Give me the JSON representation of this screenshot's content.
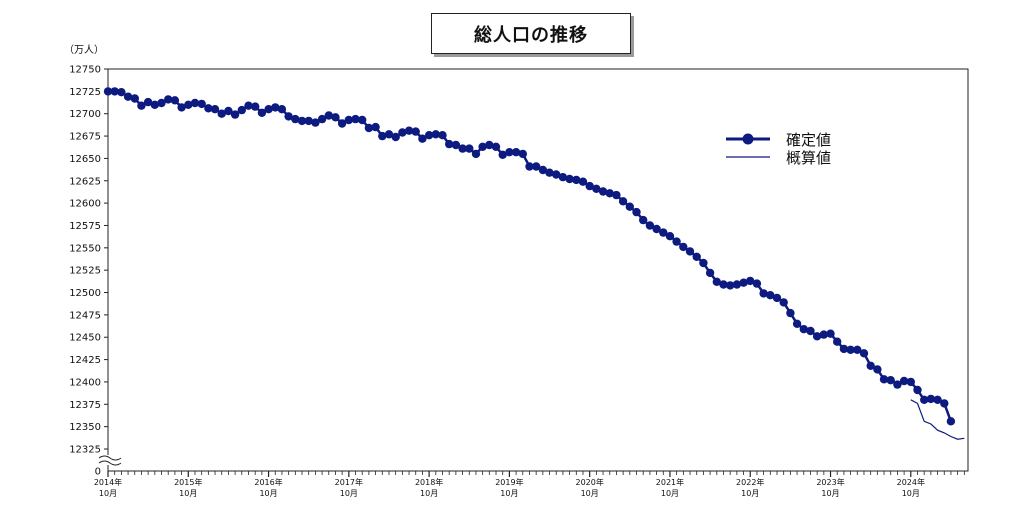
{
  "chart_data": {
    "type": "line",
    "title": "総人口の推移",
    "yunit": "（万人）",
    "ylim": [
      12325,
      12750
    ],
    "yaxis_zero_label": "0",
    "yticks": [
      12325,
      12350,
      12375,
      12400,
      12425,
      12450,
      12475,
      12500,
      12525,
      12550,
      12575,
      12600,
      12625,
      12650,
      12675,
      12700,
      12725,
      12750
    ],
    "xticks": [
      {
        "year": "2014年",
        "month": "10月"
      },
      {
        "year": "2015年",
        "month": "10月"
      },
      {
        "year": "2016年",
        "month": "10月"
      },
      {
        "year": "2017年",
        "month": "10月"
      },
      {
        "year": "2018年",
        "month": "10月"
      },
      {
        "year": "2019年",
        "month": "10月"
      },
      {
        "year": "2020年",
        "month": "10月"
      },
      {
        "year": "2021年",
        "month": "10月"
      },
      {
        "year": "2022年",
        "month": "10月"
      },
      {
        "year": "2023年",
        "month": "10月"
      },
      {
        "year": "2024年",
        "month": "10月"
      }
    ],
    "legend_position": "right",
    "series": [
      {
        "name": "確定値",
        "color": "#0d1a80",
        "marker": "circle",
        "start": "2014-10",
        "values": [
          12725,
          12725,
          12724,
          12719,
          12717,
          12709,
          12713,
          12710,
          12712,
          12716,
          12715,
          12707,
          12710,
          12712,
          12711,
          12706,
          12705,
          12700,
          12703,
          12699,
          12704,
          12709,
          12708,
          12701,
          12705,
          12707,
          12705,
          12697,
          12694,
          12692,
          12692,
          12690,
          12694,
          12698,
          12696,
          12689,
          12693,
          12694,
          12693,
          12684,
          12685,
          12675,
          12677,
          12674,
          12679,
          12681,
          12680,
          12672,
          12676,
          12677,
          12676,
          12666,
          12665,
          12661,
          12661,
          12655,
          12663,
          12665,
          12663,
          12654,
          12657,
          12657,
          12655,
          12641,
          12641,
          12637,
          12634,
          12632,
          12629,
          12627,
          12626,
          12624,
          12619,
          12616,
          12613,
          12611,
          12609,
          12602,
          12596,
          12590,
          12581,
          12575,
          12571,
          12567,
          12563,
          12557,
          12551,
          12546,
          12540,
          12533,
          12522,
          12512,
          12509,
          12508,
          12509,
          12511,
          12513,
          12510,
          12499,
          12497,
          12494,
          12489,
          12477,
          12465,
          12459,
          12457,
          12451,
          12453,
          12454,
          12445,
          12437,
          12436,
          12436,
          12432,
          12418,
          12414,
          12403,
          12402,
          12397,
          12401,
          12400,
          12391,
          12380,
          12381,
          12380,
          12376,
          12356
        ]
      },
      {
        "name": "概算値",
        "color": "#0d1a80",
        "marker": "none",
        "start": "2024-10",
        "values": [
          12380,
          12376,
          12356,
          12353,
          12346,
          12343,
          12339,
          12336,
          12337
        ]
      }
    ]
  }
}
